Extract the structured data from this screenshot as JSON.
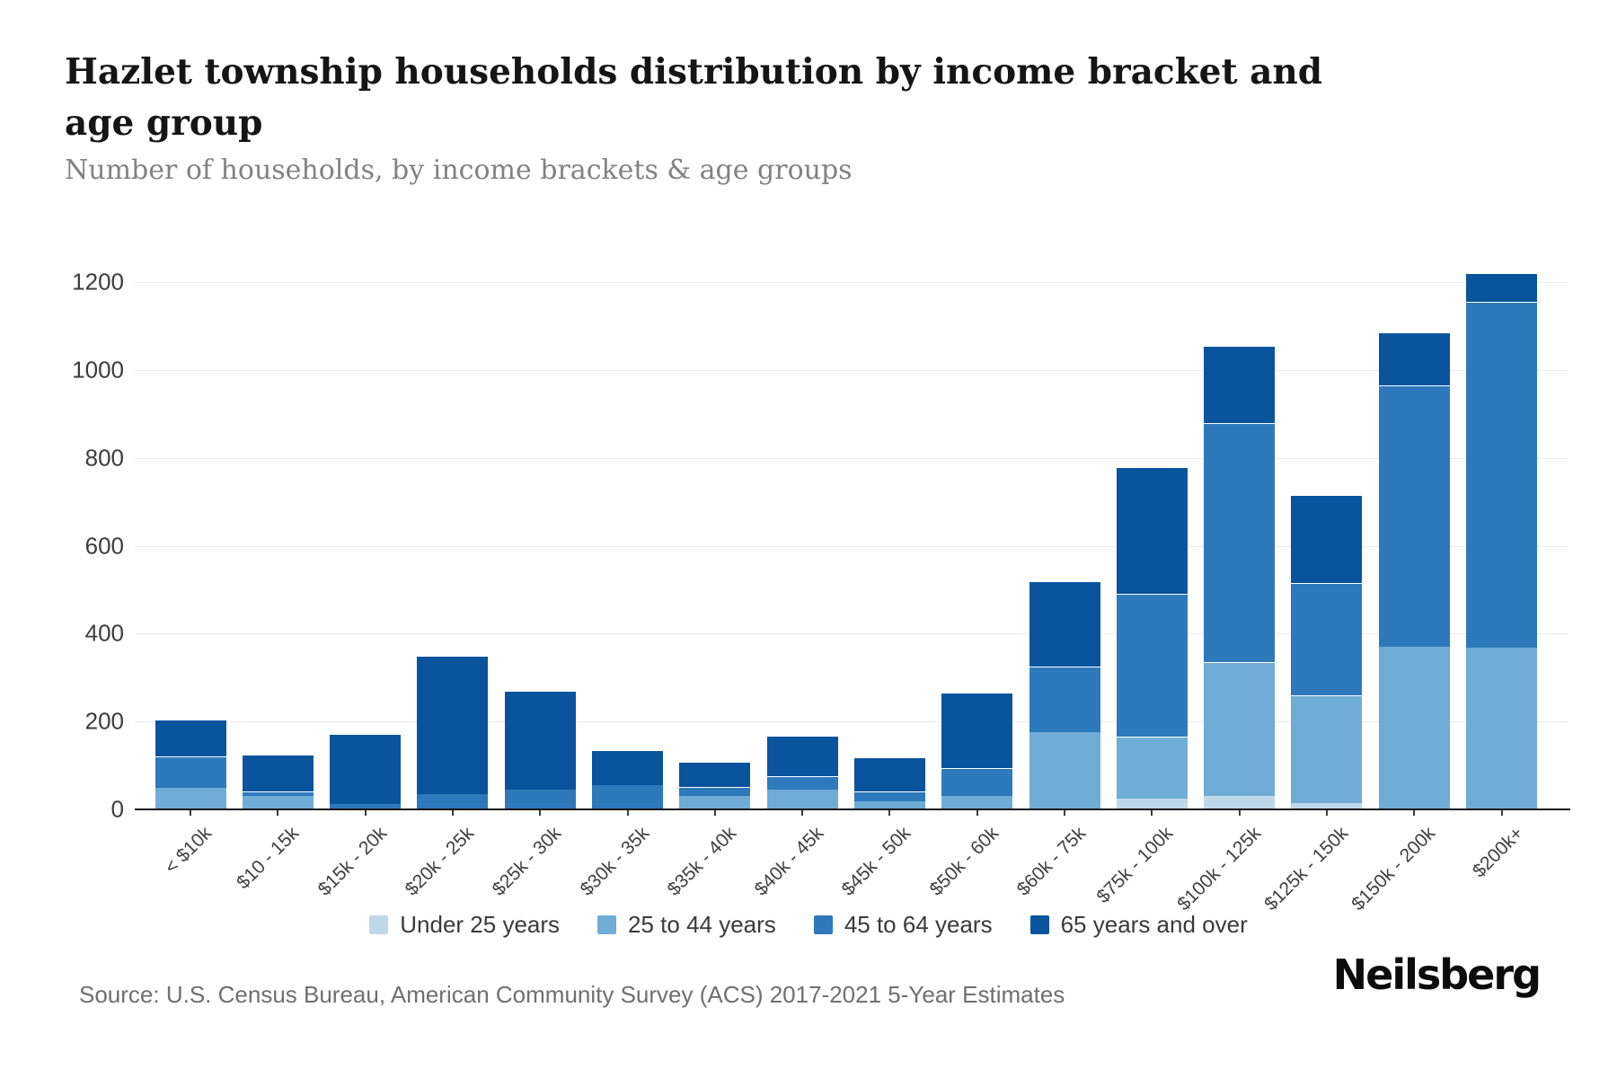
{
  "header": {
    "title": "Hazlet township households distribution by income bracket and age group",
    "subtitle": "Number of households, by income brackets & age groups"
  },
  "chart_data": {
    "type": "bar",
    "stacked": true,
    "title": "Hazlet township households distribution by income bracket and age group",
    "ylabel": "Number of households",
    "xlabel": "Income bracket",
    "ylim": [
      0,
      1200
    ],
    "yticks": [
      0,
      200,
      400,
      600,
      800,
      1000,
      1200
    ],
    "grid": true,
    "legend_position": "bottom",
    "categories": [
      "< $10k",
      "$10 - 15k",
      "$15k - 20k",
      "$20k - 25k",
      "$25k - 30k",
      "$30k - 35k",
      "$35k - 40k",
      "$40k - 45k",
      "$45k - 50k",
      "$50k - 60k",
      "$60k - 75k",
      "$75k - 100k",
      "$100k - 125k",
      "$125k - 150k",
      "$150k - 200k",
      "$200k+"
    ],
    "series": [
      {
        "name": "Under 25 years",
        "color": "#bed8ea",
        "values": [
          0,
          0,
          0,
          0,
          0,
          0,
          0,
          0,
          0,
          0,
          0,
          25,
          30,
          15,
          0,
          0
        ]
      },
      {
        "name": "25 to 44 years",
        "color": "#6facd6",
        "values": [
          50,
          30,
          0,
          0,
          0,
          0,
          30,
          45,
          18,
          30,
          175,
          140,
          305,
          245,
          370,
          368
        ]
      },
      {
        "name": "45 to 64 years",
        "color": "#2e79bc",
        "values": [
          70,
          10,
          12,
          35,
          45,
          55,
          22,
          30,
          22,
          65,
          150,
          325,
          545,
          255,
          595,
          787
        ]
      },
      {
        "name": "65 years and over",
        "color": "#0a549e",
        "values": [
          85,
          85,
          160,
          315,
          225,
          80,
          56,
          93,
          78,
          170,
          195,
          290,
          175,
          200,
          120,
          65
        ]
      }
    ]
  },
  "footer": {
    "source": "Source: U.S. Census Bureau, American Community Survey (ACS) 2017-2021 5-Year Estimates",
    "logo": "Neilsberg"
  }
}
